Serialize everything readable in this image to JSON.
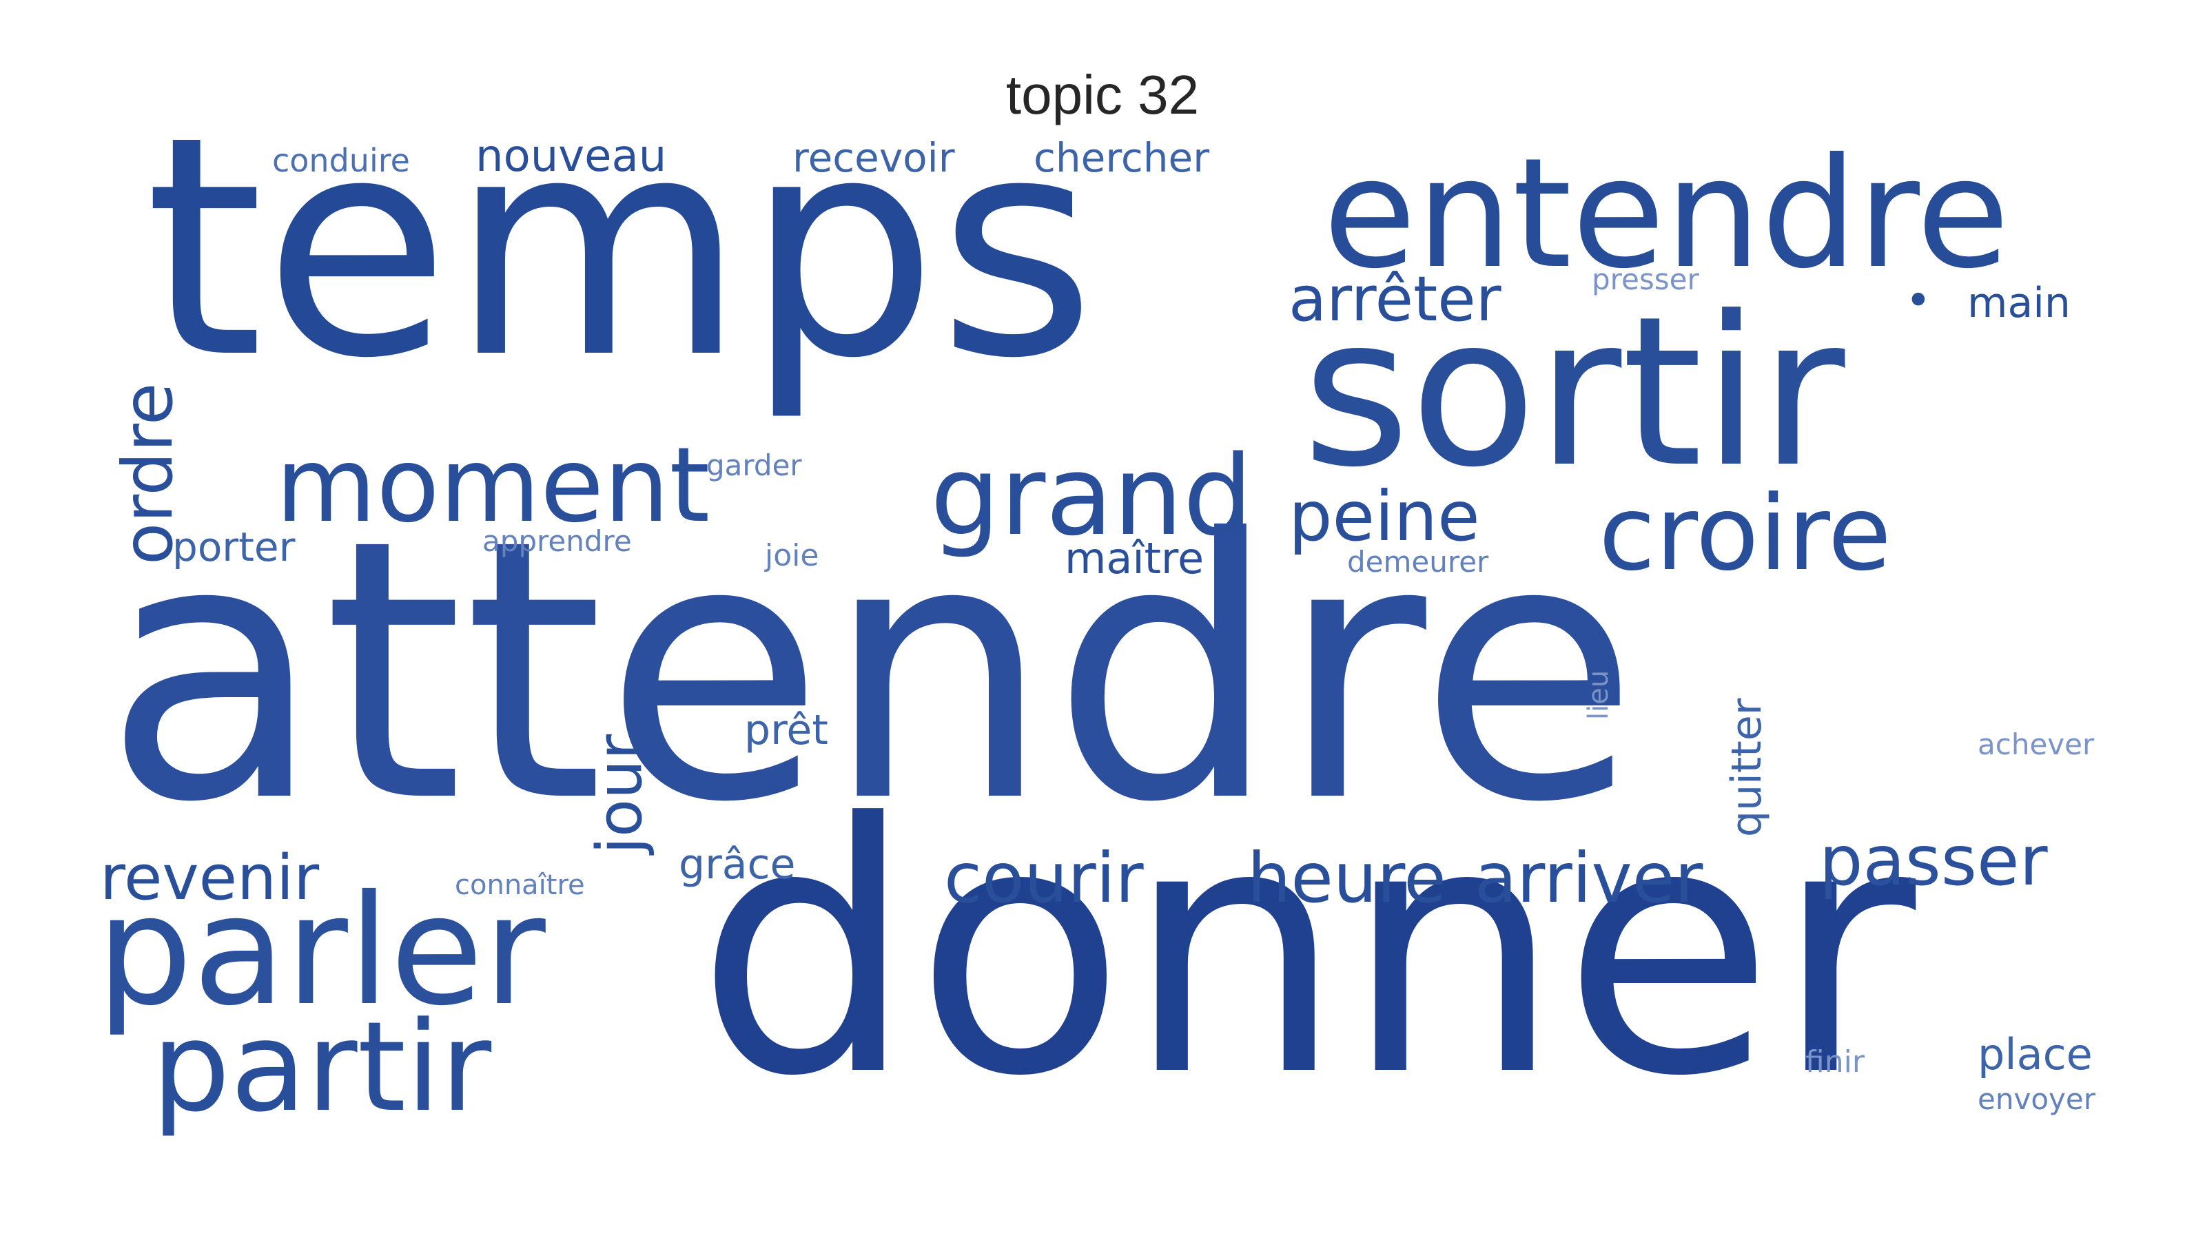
{
  "title": "topic 32",
  "colors": {
    "word": "#2a4f9a",
    "word_dark": "#1f4190",
    "title": "#262626",
    "background": "#ffffff"
  },
  "words": {
    "attendre": "attendre",
    "donner": "donner",
    "temps": "temps",
    "sortir": "sortir",
    "entendre": "entendre",
    "parler": "parler",
    "partir": "partir",
    "moment": "moment",
    "grand": "grand",
    "croire": "croire",
    "ordre": "ordre",
    "passer": "passer",
    "heure": "heure",
    "arriver": "arriver",
    "courir": "courir",
    "revenir": "revenir",
    "peine": "peine",
    "jour": "jour",
    "arreter": "arrêter",
    "nouveau": "nouveau",
    "recevoir": "recevoir",
    "chercher": "chercher",
    "conduire": "conduire",
    "porter": "porter",
    "maitre": "maître",
    "grace": "grâce",
    "pret": "prêt",
    "place": "place",
    "quitter": "quitter",
    "main": "main",
    "garder": "garder",
    "apprendre": "apprendre",
    "joie": "joie",
    "demeurer": "demeurer",
    "presser": "presser",
    "lieu": "lieu",
    "achever": "achever",
    "connaitre": "connaître",
    "finir": "finir",
    "envoyer": "envoyer",
    "dot": "•"
  }
}
